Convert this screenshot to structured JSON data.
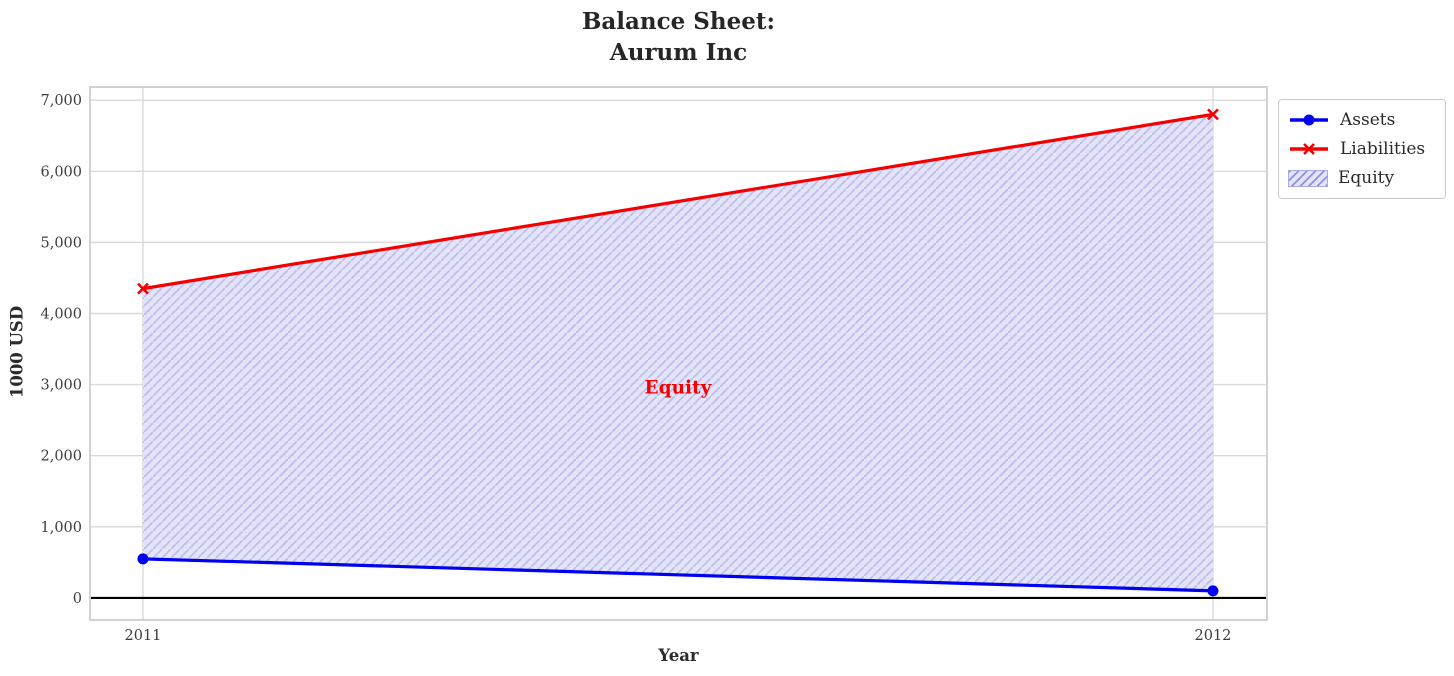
{
  "figure": {
    "title_lines": [
      "Balance Sheet:",
      "Aurum Inc"
    ],
    "xlabel": "Year",
    "ylabel": "1000 USD"
  },
  "legend": {
    "entries": [
      {
        "label": "Assets",
        "type": "line",
        "marker": "circle",
        "color": "#0000f2"
      },
      {
        "label": "Liabilities",
        "type": "line",
        "marker": "x",
        "color": "#f50000"
      },
      {
        "label": "Equity",
        "type": "hatched-patch",
        "fill": "#e4e4f8",
        "hatch_color": "#8f8fe6",
        "border_color": "#a9a9e8"
      }
    ]
  },
  "chart_data": {
    "type": "line",
    "title": "Balance Sheet: Aurum Inc",
    "xlabel": "Year",
    "ylabel": "1000 USD",
    "x": [
      2011,
      2012
    ],
    "series": [
      {
        "name": "Assets",
        "values": [
          550,
          100
        ],
        "color": "#0000f2",
        "marker": "circle"
      },
      {
        "name": "Liabilities",
        "values": [
          4350,
          6800
        ],
        "color": "#f50000",
        "marker": "x"
      }
    ],
    "fill_between": {
      "label": "Equity",
      "between": [
        "Assets",
        "Liabilities"
      ],
      "fill": "#e4e4f8",
      "hatch": "//",
      "hatch_color": "#bdbdf0"
    },
    "annotation": {
      "text": "Equity",
      "x": 2011.5,
      "y": 2960,
      "color": "#f50000"
    },
    "xticks": [
      2011,
      2012
    ],
    "xtick_labels": [
      "2011",
      "2012"
    ],
    "yticks": [
      0,
      1000,
      2000,
      3000,
      4000,
      5000,
      6000,
      7000
    ],
    "ytick_labels": [
      "0",
      "1,000",
      "2,000",
      "3,000",
      "4,000",
      "5,000",
      "6,000",
      "7,000"
    ],
    "xlim": [
      2010.9505,
      2012.0505
    ],
    "ylim": [
      -310,
      7185
    ],
    "grid": true,
    "zero_line": {
      "y": 0,
      "color": "#000000"
    },
    "legend_position": "outside-upper-right"
  },
  "colors": {
    "grid": "#dadada",
    "spine": "#d2d2d2",
    "tick_text": "#3d3d3d",
    "title_text": "#262626",
    "background": "#ffffff"
  }
}
